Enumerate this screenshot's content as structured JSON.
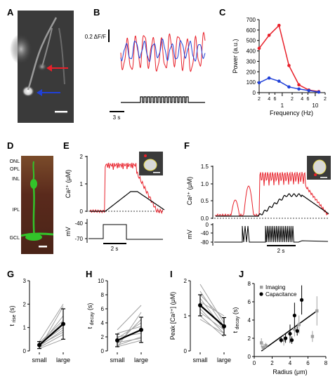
{
  "panel_labels": {
    "A": "A",
    "B": "B",
    "C": "C",
    "D": "D",
    "E": "E",
    "F": "F",
    "G": "G",
    "H": "H",
    "I": "I",
    "J": "J"
  },
  "colors": {
    "red": "#e8202a",
    "blue": "#2040d8",
    "black": "#000000",
    "gray": "#a0a0a0",
    "micro_bg": "#3a3a3a",
    "retina_bg": "#5a2a1c",
    "cell_green": "#33c42a"
  },
  "panel_b": {
    "scalebar_y": "0.2 ΔF/F",
    "scalebar_x": "3 s"
  },
  "panel_c": {
    "ylabel": "Power (a.u.)",
    "xlabel": "Frequency (Hz)",
    "yticks": [
      "0",
      "100",
      "200",
      "300",
      "400",
      "500",
      "600",
      "700"
    ],
    "xtick_major": [
      "1",
      "10"
    ],
    "xtick_minor": [
      "2",
      "4",
      "6",
      "2",
      "4",
      "6",
      "2"
    ]
  },
  "panel_d": {
    "layers": [
      "ONL",
      "OPL",
      "INL",
      "IPL",
      "GCL"
    ]
  },
  "panel_e": {
    "ylabel_ca": "Ca²⁺ (μM)",
    "yticks_ca": [
      "0",
      "1",
      "2"
    ],
    "ylabel_mv": "mV",
    "yticks_mv": [
      "-40",
      "-70"
    ],
    "scalebar_x": "2 s"
  },
  "panel_f": {
    "ylabel_ca": "Ca²⁺ (μM)",
    "yticks_ca": [
      "0.0",
      "0.5",
      "1.0",
      "1.5"
    ],
    "ylabel_mv": "mV",
    "yticks_mv": [
      "0",
      "-40",
      "-80"
    ],
    "scalebar_x": "2 s"
  },
  "chart_data": [
    {
      "panel": "C",
      "type": "line",
      "xscale": "log",
      "xlim": [
        0.2,
        20
      ],
      "ylim": [
        0,
        700
      ],
      "series": [
        {
          "color": "#e8202a",
          "x": [
            0.2,
            0.4,
            0.8,
            1.6,
            3.2,
            6.4,
            12.8
          ],
          "values": [
            425,
            550,
            645,
            260,
            75,
            25,
            10
          ]
        },
        {
          "color": "#2040d8",
          "x": [
            0.2,
            0.4,
            0.8,
            1.6,
            3.2,
            6.4,
            12.8
          ],
          "values": [
            95,
            140,
            110,
            55,
            35,
            20,
            5
          ]
        }
      ]
    },
    {
      "panel": "G",
      "type": "line",
      "ylabel": "t_rise (s)",
      "categories": [
        "small",
        "large"
      ],
      "ylim": [
        0,
        3
      ],
      "yticks": [
        "0",
        "1",
        "2",
        "3"
      ],
      "mean": [
        0.25,
        1.15
      ],
      "sd": [
        0.15,
        0.65
      ],
      "pairs": [
        [
          0.1,
          1.9
        ],
        [
          0.2,
          1.5
        ],
        [
          0.3,
          1.0
        ],
        [
          0.15,
          0.7
        ],
        [
          0.35,
          1.3
        ],
        [
          0.25,
          0.8
        ],
        [
          0.4,
          2.0
        ],
        [
          0.1,
          0.5
        ],
        [
          0.3,
          1.2
        ],
        [
          0.2,
          0.9
        ]
      ]
    },
    {
      "panel": "H",
      "type": "line",
      "ylabel": "t_decay (s)",
      "categories": [
        "small",
        "large"
      ],
      "ylim": [
        0,
        10
      ],
      "yticks": [
        "0",
        "2",
        "4",
        "6",
        "8",
        "10"
      ],
      "mean": [
        1.5,
        3.0
      ],
      "sd": [
        0.9,
        1.8
      ],
      "pairs": [
        [
          0.5,
          5.5
        ],
        [
          1.0,
          4.5
        ],
        [
          1.5,
          3.0
        ],
        [
          2.0,
          2.5
        ],
        [
          0.8,
          2.0
        ],
        [
          1.8,
          4.0
        ],
        [
          2.5,
          3.5
        ],
        [
          1.2,
          1.8
        ],
        [
          3.0,
          6.5
        ],
        [
          0.6,
          1.5
        ]
      ]
    },
    {
      "panel": "I",
      "type": "line",
      "ylabel": "Peak [Ca²⁺] (μM)",
      "categories": [
        "small",
        "large"
      ],
      "ylim": [
        0,
        2
      ],
      "yticks": [
        "0",
        "1",
        "2"
      ],
      "mean": [
        1.3,
        0.7
      ],
      "sd": [
        0.3,
        0.25
      ],
      "pairs": [
        [
          1.9,
          0.8
        ],
        [
          1.6,
          0.9
        ],
        [
          1.5,
          0.6
        ],
        [
          1.3,
          0.7
        ],
        [
          1.2,
          0.5
        ],
        [
          1.0,
          0.4
        ],
        [
          1.4,
          1.0
        ],
        [
          1.1,
          0.6
        ],
        [
          0.9,
          0.5
        ],
        [
          1.7,
          0.7
        ]
      ]
    },
    {
      "panel": "J",
      "type": "scatter",
      "ylabel": "t_decay (s)",
      "xlabel": "Radius (μm)",
      "xlim": [
        0,
        8
      ],
      "ylim": [
        0,
        8
      ],
      "xticks": [
        "0",
        "2",
        "4",
        "6",
        "8"
      ],
      "yticks": [
        "0",
        "2",
        "4",
        "6",
        "8"
      ],
      "legend": [
        "Imaging",
        "Capacitance"
      ],
      "legend_position": "top-left",
      "series": [
        {
          "name": "Imaging",
          "color": "#a0a0a0",
          "x": [
            0.8,
            1.0,
            1.3,
            3.3,
            4.5,
            5.0,
            6.5,
            7.0
          ],
          "values": [
            1.5,
            1.0,
            1.2,
            1.8,
            3.0,
            3.5,
            2.2,
            5.0
          ]
        },
        {
          "name": "Capacitance",
          "color": "#000000",
          "x": [
            3.0,
            3.5,
            4.0,
            4.2,
            4.5,
            4.8,
            5.3
          ],
          "values": [
            1.8,
            2.0,
            2.5,
            1.8,
            4.5,
            2.8,
            6.2
          ]
        }
      ],
      "fit": {
        "x": [
          0.8,
          7.0
        ],
        "values": [
          0.6,
          5.0
        ]
      }
    }
  ]
}
